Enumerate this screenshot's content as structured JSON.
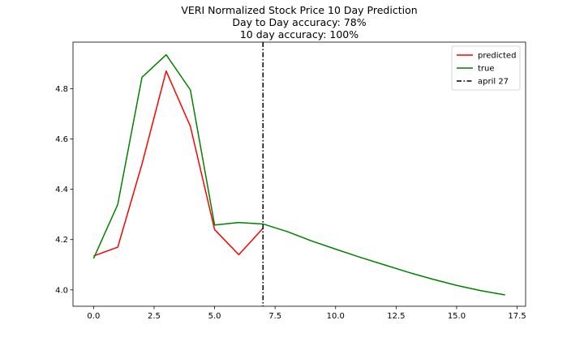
{
  "chart_data": {
    "type": "line",
    "title": [
      "VERI Normalized Stock Price 10 Day Prediction",
      "Day to Day accuracy: 78%",
      "10 day accuracy: 100%"
    ],
    "xlabel": "",
    "ylabel": "",
    "xlim": [
      -0.85,
      17.85
    ],
    "ylim": [
      3.935,
      4.985
    ],
    "xticks": [
      0,
      2.5,
      5,
      7.5,
      10,
      12.5,
      15,
      17.5
    ],
    "xtick_labels": [
      "0.0",
      "2.5",
      "5.0",
      "7.5",
      "10.0",
      "12.5",
      "15.0",
      "17.5"
    ],
    "yticks": [
      4.0,
      4.2,
      4.4,
      4.6,
      4.8
    ],
    "ytick_labels": [
      "4.0",
      "4.2",
      "4.4",
      "4.6",
      "4.8"
    ],
    "grid": false,
    "legend_position": "top-right",
    "series": [
      {
        "name": "predicted",
        "color": "#ff0000",
        "x": [
          0,
          1,
          2,
          3,
          4,
          5,
          6,
          7
        ],
        "y": [
          4.135,
          4.17,
          4.5,
          4.87,
          4.65,
          4.24,
          4.14,
          4.245
        ]
      },
      {
        "name": "true",
        "color": "#008000",
        "x": [
          0,
          1,
          2,
          3,
          4,
          5,
          6,
          7,
          8,
          9,
          10,
          11,
          12,
          13,
          14,
          15,
          16,
          17
        ],
        "y": [
          4.125,
          4.34,
          4.845,
          4.935,
          4.795,
          4.258,
          4.268,
          4.262,
          4.232,
          4.195,
          4.162,
          4.13,
          4.1,
          4.07,
          4.043,
          4.018,
          3.997,
          3.98
        ]
      }
    ],
    "annotations": [
      {
        "type": "vline",
        "name": "april 27",
        "x": 7,
        "color": "#000000",
        "style": "dash-dot"
      }
    ]
  }
}
